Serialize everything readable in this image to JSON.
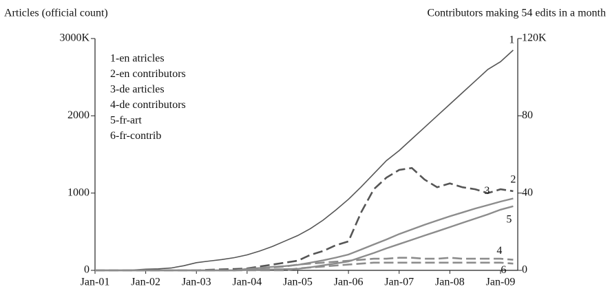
{
  "chart_data": {
    "type": "line",
    "title": "Articles (official count)",
    "y2_title": "Contributors making 54 edits in a month",
    "categories": [
      "Jan-01",
      null,
      null,
      null,
      "Jan-02",
      null,
      null,
      null,
      "Jan-03",
      null,
      null,
      null,
      "Jan-04",
      null,
      null,
      null,
      "Jan-05",
      null,
      null,
      null,
      "Jan-06",
      null,
      null,
      null,
      "Jan-07",
      null,
      null,
      null,
      "Jan-08",
      null,
      null,
      null,
      "Jan-09",
      null
    ],
    "ylim": [
      0,
      3000
    ],
    "yticks": [
      0,
      1000,
      2000,
      {
        "value": 3000,
        "label": "3000K"
      }
    ],
    "y2lim": [
      0,
      120
    ],
    "y2ticks": [
      0,
      40,
      80,
      {
        "value": 120,
        "label": "120K"
      }
    ],
    "series": [
      {
        "name": "1-en atricles",
        "tag": "1",
        "color": "#555555",
        "dash": false,
        "axis": "y",
        "values": [
          0,
          0,
          2,
          5,
          15,
          20,
          30,
          60,
          100,
          120,
          140,
          165,
          200,
          250,
          310,
          380,
          450,
          540,
          650,
          780,
          920,
          1080,
          1250,
          1420,
          1550,
          1700,
          1850,
          2000,
          2150,
          2300,
          2450,
          2600,
          2700,
          2850
        ]
      },
      {
        "name": "2-en contributors",
        "tag": "2",
        "color": "#555555",
        "dash": true,
        "axis": "y2",
        "values": [
          0,
          0,
          0,
          0,
          0,
          0,
          0,
          0,
          0,
          0.3,
          0.5,
          0.7,
          1,
          2,
          3,
          4,
          5,
          8,
          10,
          13,
          15,
          30,
          42,
          48,
          52,
          53,
          47,
          43,
          45,
          43,
          42,
          40,
          42,
          41
        ]
      },
      {
        "name": "3-de articles",
        "tag": "3",
        "color": "#8c8c8c",
        "dash": false,
        "axis": "y",
        "values": [
          0,
          0,
          0,
          0,
          0,
          0,
          0,
          0,
          0,
          0,
          0,
          0,
          20,
          30,
          45,
          55,
          70,
          100,
          130,
          165,
          205,
          270,
          335,
          400,
          470,
          530,
          590,
          645,
          700,
          750,
          800,
          845,
          890,
          930
        ]
      },
      {
        "name": "4-de contributors",
        "tag": "4",
        "color": "#8c8c8c",
        "dash": true,
        "axis": "y2",
        "values": [
          0,
          0,
          0,
          0,
          0,
          0,
          0,
          0,
          0,
          0,
          0,
          0,
          0.5,
          1,
          1.5,
          2,
          3,
          3.5,
          4,
          4.5,
          5,
          5.5,
          6,
          6,
          6.5,
          6.5,
          6,
          6,
          6.5,
          6,
          6,
          6,
          6,
          5.5
        ]
      },
      {
        "name": "5-fr-art",
        "tag": "5",
        "color": "#8c8c8c",
        "dash": false,
        "axis": "y",
        "values": [
          0,
          0,
          0,
          0,
          0,
          0,
          0,
          0,
          0,
          0,
          0,
          0,
          5,
          8,
          12,
          16,
          20,
          40,
          65,
          90,
          115,
          170,
          225,
          285,
          340,
          395,
          450,
          505,
          560,
          615,
          670,
          725,
          785,
          830
        ]
      },
      {
        "name": "6-fr-contrib",
        "tag": "6",
        "color": "#8c8c8c",
        "dash": true,
        "axis": "y2",
        "values": [
          0,
          0,
          0,
          0,
          0,
          0,
          0,
          0,
          0,
          0,
          0,
          0,
          0,
          0,
          0,
          0,
          1,
          1.5,
          2,
          2.5,
          3,
          3.5,
          4,
          4,
          4,
          4,
          4,
          4,
          4,
          4,
          4,
          4,
          4,
          3.5
        ]
      }
    ]
  }
}
